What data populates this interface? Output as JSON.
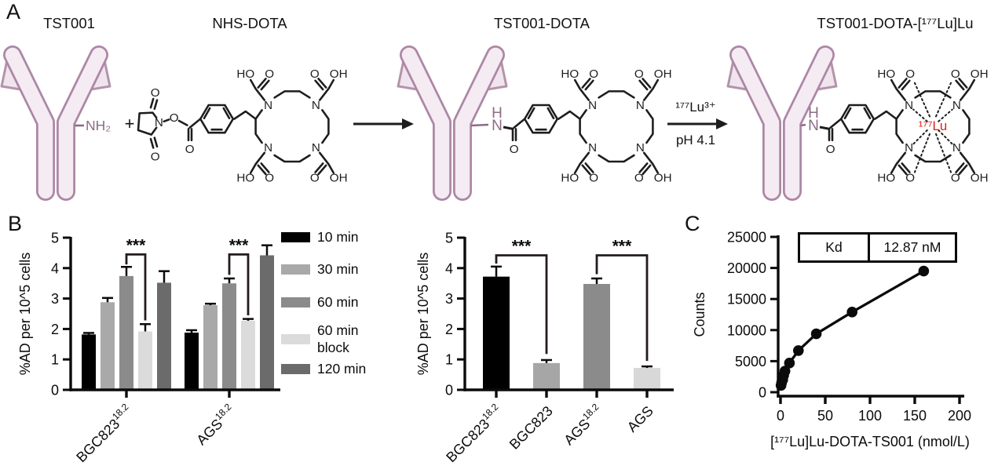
{
  "panel_labels": {
    "a": "A",
    "b": "B",
    "c": "C"
  },
  "panel_a": {
    "compound_labels": [
      "TST001",
      "NHS-DOTA",
      "TST001-DOTA",
      "TST001-DOTA-[¹⁷⁷Lu]Lu"
    ],
    "plus_sign": "+",
    "nh2_label": "NH₂",
    "amide_n": "N",
    "amide_h": "H",
    "reaction_reagent": "¹⁷⁷Lu³⁺",
    "reaction_condition": "pH 4.1",
    "lu_label": "¹⁷⁷Lu",
    "colors": {
      "lutetium": "#e11d1d",
      "antibody_fill": "#f4ebf3",
      "antibody_stroke": "#ad87a5",
      "amide": "#8d6b85",
      "bond": "#1d1d1d"
    },
    "atoms": {
      "n": "N",
      "o": "O",
      "ho": "HO",
      "oh": "OH"
    }
  },
  "chart_data": [
    {
      "type": "bar",
      "panel": "B-left",
      "ylabel": "%AD per 10^5 cells",
      "xlabel": "",
      "ylim": [
        0,
        5
      ],
      "yticks": [
        0,
        1,
        2,
        3,
        4,
        5
      ],
      "categories": [
        {
          "base": "BGC823",
          "sup": "18.2"
        },
        {
          "base": "AGS",
          "sup": "18.2"
        }
      ],
      "series": [
        {
          "name": "10 min",
          "color": "#000000",
          "values": [
            1.82,
            1.88
          ],
          "errors": [
            0.05,
            0.08
          ]
        },
        {
          "name": "30 min",
          "color": "#a9a9a9",
          "values": [
            2.88,
            2.78
          ],
          "errors": [
            0.14,
            0.05
          ]
        },
        {
          "name": "60 min",
          "color": "#8b8b8b",
          "values": [
            3.74,
            3.5
          ],
          "errors": [
            0.3,
            0.16
          ]
        },
        {
          "name": "60 min block",
          "color": "#dbdbdb",
          "values": [
            1.92,
            2.27
          ],
          "errors": [
            0.24,
            0.06
          ]
        },
        {
          "name": "120 min",
          "color": "#6b6b6b",
          "values": [
            3.52,
            4.42
          ],
          "errors": [
            0.38,
            0.33
          ]
        }
      ],
      "significance": [
        {
          "group": 0,
          "from_series": 2,
          "to_series": 3,
          "label": "***",
          "bar_y": 4.45,
          "left_drop_to": 4.12,
          "right_drop_to": 2.28
        },
        {
          "group": 1,
          "from_series": 2,
          "to_series": 3,
          "label": "***",
          "bar_y": 4.45,
          "left_drop_to": 3.78,
          "right_drop_to": 2.45
        }
      ],
      "legend_position": "right",
      "grid": false
    },
    {
      "type": "bar",
      "panel": "B-right",
      "ylabel": "%AD per 10^5 cells",
      "xlabel": "",
      "ylim": [
        0,
        5
      ],
      "yticks": [
        0,
        1,
        2,
        3,
        4,
        5
      ],
      "categories": [
        {
          "base": "BGC823",
          "sup": "18.2"
        },
        {
          "base": "BGC823",
          "sup": ""
        },
        {
          "base": "AGS",
          "sup": "18.2"
        },
        {
          "base": "AGS",
          "sup": ""
        }
      ],
      "bars": [
        {
          "color": "#000000",
          "value": 3.72,
          "error": 0.33
        },
        {
          "color": "#a6a6a6",
          "value": 0.88,
          "error": 0.1
        },
        {
          "color": "#8b8b8b",
          "value": 3.48,
          "error": 0.18
        },
        {
          "color": "#d8d8d8",
          "value": 0.72,
          "error": 0.05
        }
      ],
      "significance": [
        {
          "from_bar": 0,
          "to_bar": 1,
          "label": "***",
          "bar_y": 4.42,
          "left_drop_to": 4.15,
          "right_drop_to": 1.18
        },
        {
          "from_bar": 2,
          "to_bar": 3,
          "label": "***",
          "bar_y": 4.42,
          "left_drop_to": 3.8,
          "right_drop_to": 0.95
        }
      ],
      "grid": false
    },
    {
      "type": "scatter",
      "panel": "C",
      "title": "",
      "xlabel": "[¹⁷⁷Lu]Lu-DOTA-TS001 (nmol/L)",
      "ylabel": "Counts",
      "xlim": [
        0,
        200
      ],
      "ylim": [
        0,
        25000
      ],
      "xticks": [
        0,
        50,
        100,
        150,
        200
      ],
      "yticks": [
        0,
        5000,
        10000,
        15000,
        20000,
        25000
      ],
      "x": [
        0.6,
        1.2,
        2.5,
        3.5,
        5,
        10,
        20,
        40,
        80,
        160
      ],
      "y": [
        1100,
        1500,
        2000,
        2700,
        3400,
        4700,
        6700,
        9400,
        12900,
        19500
      ],
      "line": true,
      "marker": "circle",
      "annotation": {
        "label": "Kd",
        "value": "12.87 nM"
      },
      "grid": false
    }
  ]
}
